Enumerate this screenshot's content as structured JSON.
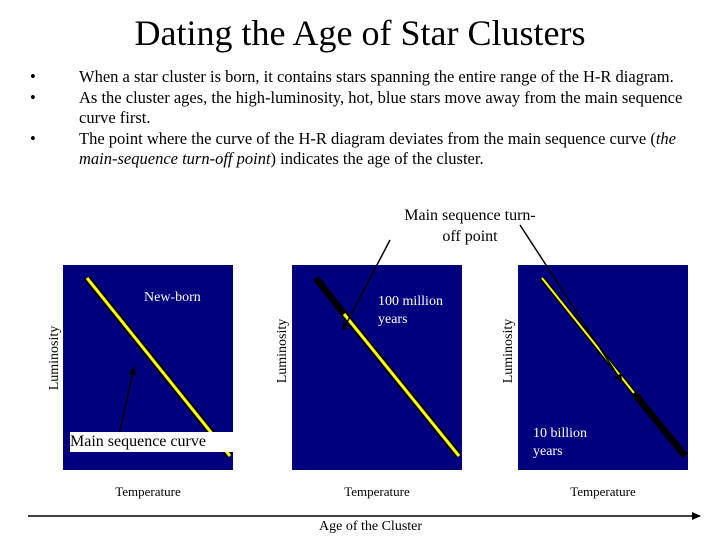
{
  "title": "Dating the Age of Star Clusters",
  "bullets": [
    "When a star cluster is born, it contains stars spanning the entire range of the H-R diagram.",
    "As the cluster ages, the high-luminosity, hot, blue stars move away from the main sequence curve first.",
    "The point where the curve of the H-R diagram deviates from the main sequence curve (the main-sequence turn-off point) indicates the age of the cluster."
  ],
  "bullet3_parts": {
    "before": "The point where the curve of the H-R diagram deviates from the main sequence curve (",
    "italic": "the main-sequence turn-off point",
    "after": ") indicates the age of the cluster."
  },
  "bullet_marker": "•",
  "turnoff_label": "Main sequence turn-off point",
  "panels": [
    {
      "ylabel": "Luminosity",
      "xlabel": "Temperature",
      "label": "New-born"
    },
    {
      "ylabel": "Luminosity",
      "xlabel": "Temperature",
      "label": "100 million years"
    },
    {
      "ylabel": "Luminosity",
      "xlabel": "Temperature",
      "label": "10 billion years"
    }
  ],
  "main_sequence_caption": "Main sequence curve",
  "age_axis_label": "Age of the Cluster",
  "colors": {
    "panel_background": "#00007f",
    "main_sequence_line": "#ffff00",
    "turned_off_segment": "#000000",
    "label_text": "#ffffff"
  }
}
